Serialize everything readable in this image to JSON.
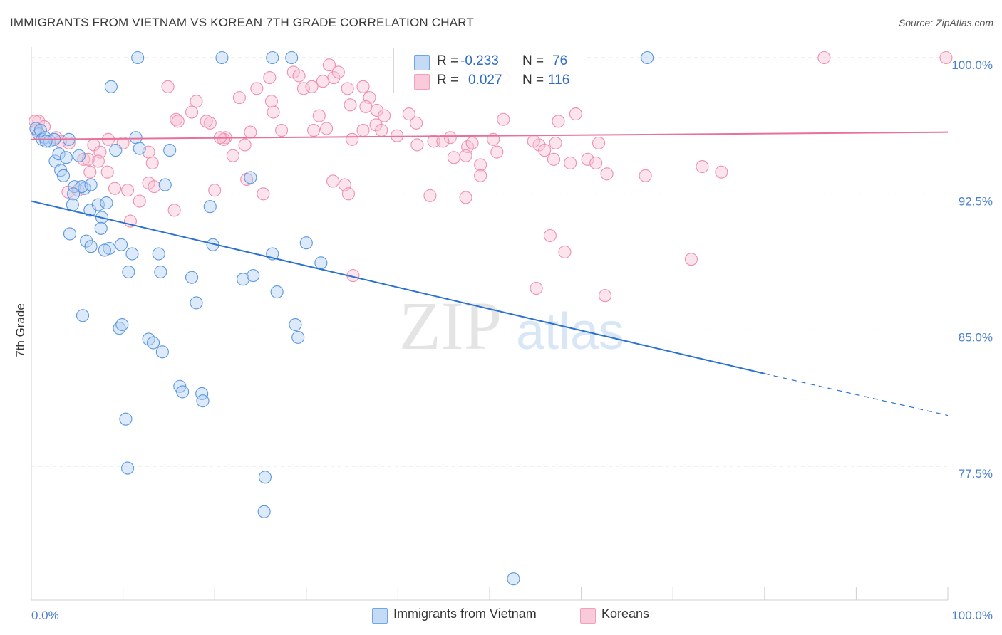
{
  "title": "IMMIGRANTS FROM VIETNAM VS KOREAN 7TH GRADE CORRELATION CHART",
  "source": "Source: ZipAtlas.com",
  "watermark": {
    "zip": "ZIP",
    "atlas": "atlas"
  },
  "legend_stats": [
    {
      "r_label": "R =",
      "r_value": "-0.233",
      "n_label": "N =",
      "n_value": "76"
    },
    {
      "r_label": "R =",
      "r_value": "0.027",
      "n_label": "N =",
      "n_value": "116"
    }
  ],
  "colors": {
    "vietnam": "#6fa6e6",
    "korean": "#f4a0bb",
    "vietnam_line": "#2a72d0",
    "korean_line": "#e8709a",
    "tick_label": "#4a7fd0"
  },
  "chart_data": {
    "type": "scatter",
    "title": "IMMIGRANTS FROM VIETNAM VS KOREAN 7TH GRADE CORRELATION CHART",
    "xlabel": "",
    "ylabel": "7th Grade",
    "xlim": [
      0,
      100
    ],
    "ylim": [
      70.5,
      101
    ],
    "x_tick_labels": [
      "0.0%",
      "100.0%"
    ],
    "y_ticks": [
      77.5,
      85.0,
      92.5,
      100.0
    ],
    "y_tick_labels": [
      "77.5%",
      "85.0%",
      "92.5%",
      "100.0%"
    ],
    "grid": true,
    "legend_position": "bottom",
    "series": [
      {
        "name": "Immigrants from Vietnam",
        "color": "#6fa6e6",
        "trend": {
          "x": [
            0,
            80
          ],
          "y": [
            92.1,
            82.6
          ],
          "dashed_to": [
            100,
            80.3
          ]
        },
        "points": [
          [
            0.5,
            96.1
          ],
          [
            0.8,
            95.8
          ],
          [
            1.0,
            96.0
          ],
          [
            1.2,
            95.5
          ],
          [
            1.5,
            95.6
          ],
          [
            2.0,
            95.4
          ],
          [
            2.5,
            95.5
          ],
          [
            1.6,
            95.4
          ],
          [
            2.6,
            94.3
          ],
          [
            3.0,
            94.7
          ],
          [
            3.8,
            94.5
          ],
          [
            5.2,
            94.6
          ],
          [
            3.2,
            93.8
          ],
          [
            3.5,
            93.5
          ],
          [
            4.7,
            92.9
          ],
          [
            5.8,
            92.8
          ],
          [
            5.5,
            92.9
          ],
          [
            6.5,
            93.0
          ],
          [
            4.6,
            92.5
          ],
          [
            4.5,
            91.9
          ],
          [
            6.4,
            91.6
          ],
          [
            7.3,
            91.9
          ],
          [
            8.2,
            92.0
          ],
          [
            7.7,
            91.2
          ],
          [
            7.6,
            90.6
          ],
          [
            4.2,
            90.3
          ],
          [
            6.0,
            89.9
          ],
          [
            6.5,
            89.6
          ],
          [
            8.5,
            89.5
          ],
          [
            9.8,
            89.7
          ],
          [
            8.0,
            89.4
          ],
          [
            11.0,
            89.2
          ],
          [
            13.9,
            89.2
          ],
          [
            10.6,
            88.2
          ],
          [
            14.1,
            88.2
          ],
          [
            17.5,
            87.9
          ],
          [
            23.1,
            87.8
          ],
          [
            24.2,
            88.0
          ],
          [
            26.8,
            87.1
          ],
          [
            18.0,
            86.5
          ],
          [
            5.6,
            85.8
          ],
          [
            9.6,
            85.1
          ],
          [
            9.9,
            85.3
          ],
          [
            12.8,
            84.5
          ],
          [
            13.3,
            84.3
          ],
          [
            14.3,
            83.8
          ],
          [
            16.2,
            81.9
          ],
          [
            16.5,
            81.6
          ],
          [
            18.6,
            81.5
          ],
          [
            18.7,
            81.1
          ],
          [
            10.3,
            80.1
          ],
          [
            10.5,
            77.4
          ],
          [
            25.5,
            76.9
          ],
          [
            25.4,
            75.0
          ],
          [
            52.6,
            71.3
          ],
          [
            11.6,
            100.0
          ],
          [
            20.8,
            100.0
          ],
          [
            26.3,
            100.0
          ],
          [
            28.4,
            100.0
          ],
          [
            42.6,
            100.0
          ],
          [
            67.2,
            100.0
          ],
          [
            8.7,
            98.4
          ],
          [
            11.4,
            95.6
          ],
          [
            11.8,
            95.0
          ],
          [
            15.1,
            94.9
          ],
          [
            9.2,
            94.9
          ],
          [
            14.6,
            93.0
          ],
          [
            23.9,
            93.4
          ],
          [
            19.5,
            91.8
          ],
          [
            26.3,
            89.2
          ],
          [
            19.8,
            89.7
          ],
          [
            30.0,
            89.8
          ],
          [
            31.6,
            88.7
          ],
          [
            28.8,
            85.3
          ],
          [
            29.1,
            84.6
          ],
          [
            4.1,
            95.5
          ]
        ]
      },
      {
        "name": "Koreans",
        "color": "#f4a0bb",
        "trend": {
          "x": [
            0,
            100
          ],
          "y": [
            95.5,
            95.9
          ]
        },
        "points": [
          [
            0.8,
            96.5
          ],
          [
            1.4,
            96.2
          ],
          [
            0.6,
            96.0
          ],
          [
            2.7,
            95.6
          ],
          [
            3.2,
            95.4
          ],
          [
            4.1,
            95.3
          ],
          [
            6.8,
            95.2
          ],
          [
            8.4,
            95.5
          ],
          [
            7.5,
            94.8
          ],
          [
            10.0,
            95.3
          ],
          [
            12.8,
            94.8
          ],
          [
            13.2,
            94.2
          ],
          [
            5.7,
            94.4
          ],
          [
            7.3,
            94.3
          ],
          [
            6.4,
            93.7
          ],
          [
            8.3,
            93.7
          ],
          [
            9.1,
            92.8
          ],
          [
            10.5,
            92.7
          ],
          [
            12.8,
            93.1
          ],
          [
            13.4,
            92.9
          ],
          [
            4.0,
            92.6
          ],
          [
            5.1,
            92.7
          ],
          [
            11.8,
            92.1
          ],
          [
            15.6,
            91.6
          ],
          [
            10.8,
            91.0
          ],
          [
            6.2,
            94.4
          ],
          [
            18.0,
            97.6
          ],
          [
            17.5,
            97.0
          ],
          [
            19.5,
            96.4
          ],
          [
            19.1,
            96.5
          ],
          [
            15.8,
            96.6
          ],
          [
            16.0,
            96.5
          ],
          [
            21.2,
            95.6
          ],
          [
            21.0,
            95.5
          ],
          [
            20.6,
            95.6
          ],
          [
            23.3,
            95.2
          ],
          [
            23.9,
            95.9
          ],
          [
            22.0,
            94.6
          ],
          [
            23.5,
            93.3
          ],
          [
            25.3,
            92.5
          ],
          [
            20.0,
            92.7
          ],
          [
            14.9,
            98.4
          ],
          [
            22.7,
            97.8
          ],
          [
            24.6,
            98.3
          ],
          [
            26.0,
            98.9
          ],
          [
            26.4,
            97.0
          ],
          [
            26.2,
            97.6
          ],
          [
            28.6,
            99.2
          ],
          [
            29.2,
            99.0
          ],
          [
            29.7,
            98.3
          ],
          [
            30.6,
            98.4
          ],
          [
            31.8,
            98.7
          ],
          [
            33.0,
            98.9
          ],
          [
            33.5,
            99.2
          ],
          [
            34.5,
            98.3
          ],
          [
            36.2,
            98.4
          ],
          [
            36.9,
            97.8
          ],
          [
            34.8,
            97.4
          ],
          [
            36.5,
            97.3
          ],
          [
            37.7,
            97.1
          ],
          [
            38.5,
            96.8
          ],
          [
            37.6,
            96.3
          ],
          [
            38.2,
            96.0
          ],
          [
            36.2,
            96.0
          ],
          [
            35.0,
            95.5
          ],
          [
            32.2,
            96.1
          ],
          [
            31.4,
            96.8
          ],
          [
            27.3,
            96.0
          ],
          [
            30.8,
            96.0
          ],
          [
            39.9,
            95.7
          ],
          [
            41.2,
            96.9
          ],
          [
            42.0,
            96.4
          ],
          [
            42.1,
            95.2
          ],
          [
            43.9,
            95.4
          ],
          [
            45.7,
            95.6
          ],
          [
            47.6,
            95.1
          ],
          [
            47.4,
            94.6
          ],
          [
            48.1,
            95.3
          ],
          [
            44.9,
            95.4
          ],
          [
            50.4,
            95.5
          ],
          [
            50.8,
            94.8
          ],
          [
            55.4,
            95.2
          ],
          [
            56.0,
            94.9
          ],
          [
            57.0,
            94.4
          ],
          [
            58.8,
            94.2
          ],
          [
            60.7,
            94.4
          ],
          [
            61.6,
            94.2
          ],
          [
            62.8,
            93.6
          ],
          [
            67.0,
            93.5
          ],
          [
            73.2,
            94.0
          ],
          [
            75.3,
            93.7
          ],
          [
            43.5,
            92.4
          ],
          [
            46.1,
            94.5
          ],
          [
            32.9,
            93.2
          ],
          [
            34.2,
            93.0
          ],
          [
            34.6,
            92.5
          ],
          [
            47.4,
            92.3
          ],
          [
            49.0,
            94.1
          ],
          [
            49.0,
            93.5
          ],
          [
            57.5,
            96.5
          ],
          [
            59.4,
            96.9
          ],
          [
            51.5,
            96.6
          ],
          [
            54.8,
            95.4
          ],
          [
            57.2,
            95.3
          ],
          [
            61.9,
            95.3
          ],
          [
            56.6,
            90.2
          ],
          [
            58.2,
            89.3
          ],
          [
            72.0,
            88.9
          ],
          [
            35.1,
            88.0
          ],
          [
            55.1,
            87.3
          ],
          [
            62.6,
            86.9
          ],
          [
            86.5,
            100.0
          ],
          [
            99.8,
            100.0
          ],
          [
            51.5,
            98.9
          ],
          [
            32.5,
            99.6
          ],
          [
            0.4,
            96.5
          ]
        ]
      }
    ]
  },
  "bottom_legend": [
    {
      "label": "Immigrants from Vietnam"
    },
    {
      "label": "Koreans"
    }
  ]
}
